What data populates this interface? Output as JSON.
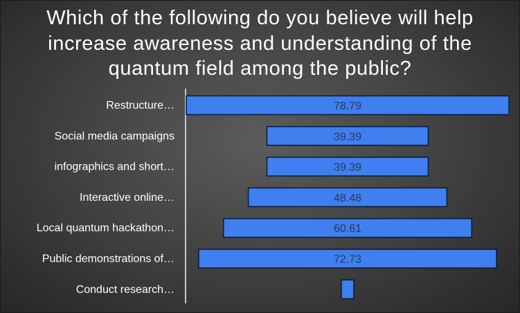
{
  "chart_data": {
    "type": "bar",
    "orientation": "horizontal-funnel",
    "title": "Which of the following do you believe will help increase awareness and understanding of the quantum field among the public?",
    "categories": [
      "Restructure…",
      "Social media campaigns",
      "infographics and short…",
      "Interactive online…",
      "Local quantum hackathon…",
      "Public demonstrations of…",
      "Conduct research…"
    ],
    "values": [
      78.79,
      39.39,
      39.39,
      48.48,
      60.61,
      72.73,
      3.03
    ],
    "data_labels": [
      "78.79",
      "39.39",
      "39.39",
      "48.48",
      "60.61",
      "72.73",
      ""
    ],
    "bar_color": "#3f7fef",
    "bar_outline": "#0b1a33",
    "label_color": "#ffffff",
    "grid": false,
    "legend": "none"
  }
}
